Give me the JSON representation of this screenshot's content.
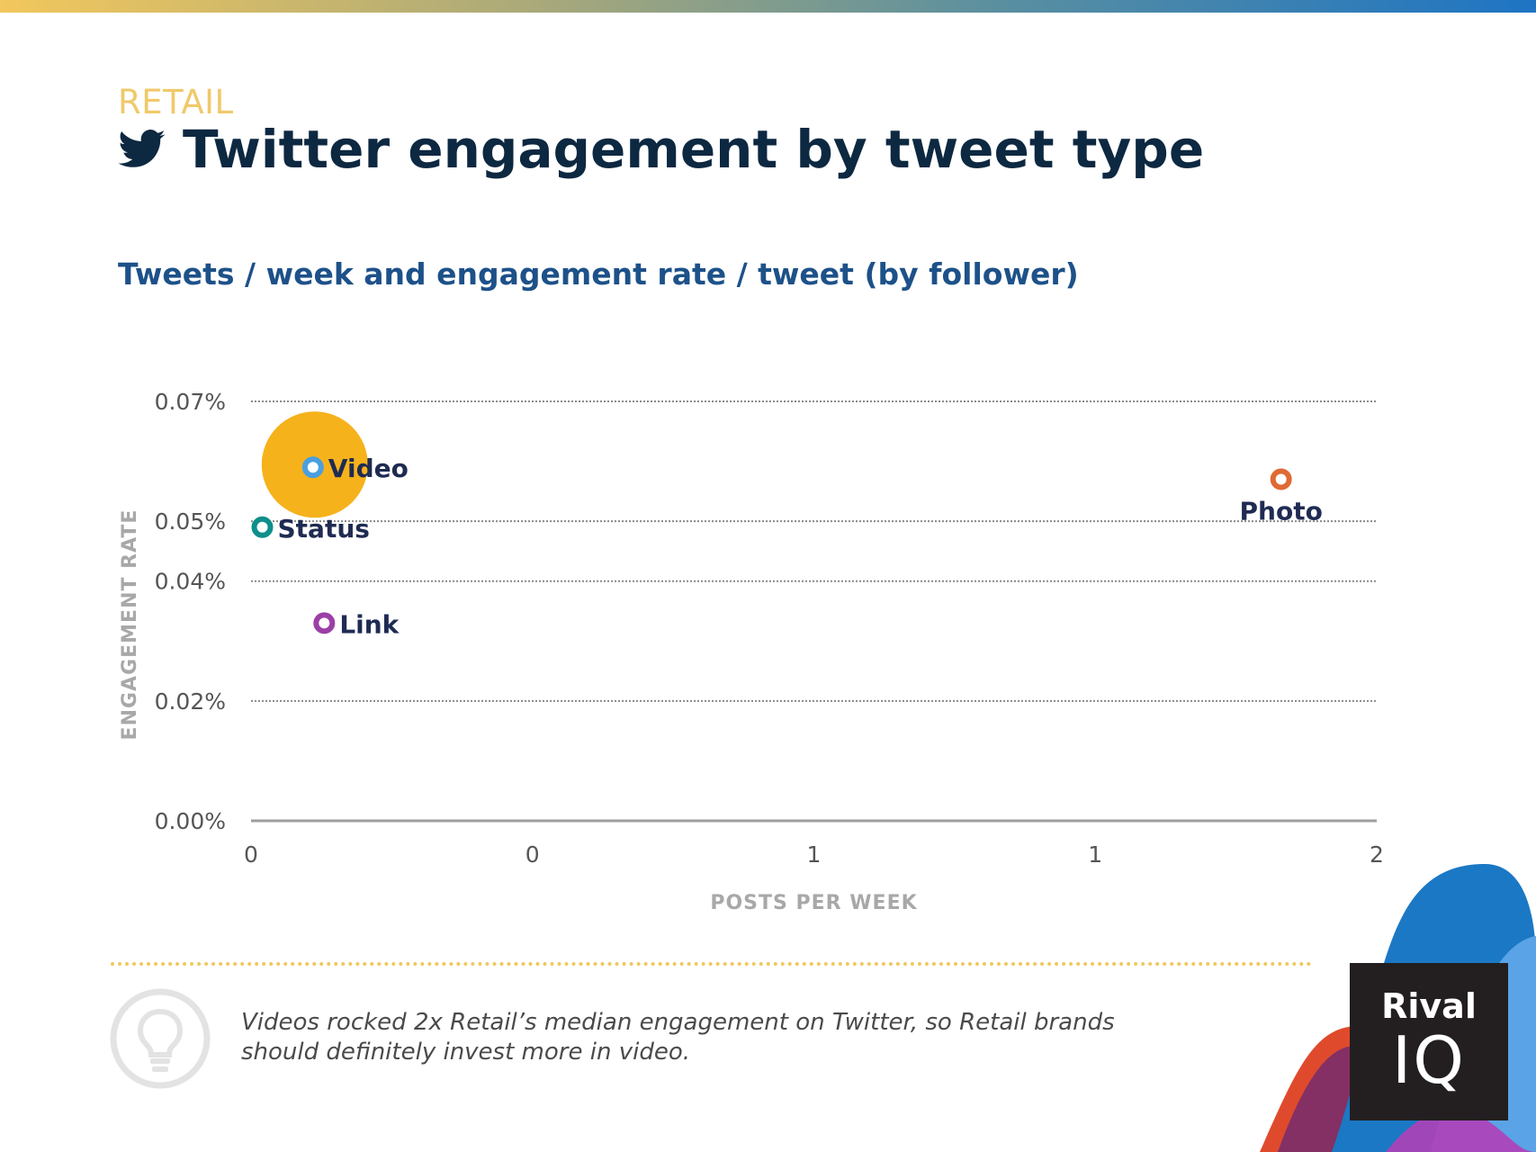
{
  "header": {
    "kicker": "RETAIL",
    "title": "Twitter engagement by tweet type",
    "subtitle": "Tweets / week and engagement rate / tweet (by follower)"
  },
  "chart_data": {
    "type": "scatter",
    "xlabel": "POSTS PER WEEK",
    "ylabel": "ENGAGEMENT RATE",
    "xlim": [
      0,
      2
    ],
    "ylim": [
      0,
      0.0007
    ],
    "y_ticks": [
      {
        "value": 0.0,
        "label": "0.00%"
      },
      {
        "value": 0.0002,
        "label": "0.02%"
      },
      {
        "value": 0.0004,
        "label": "0.04%"
      },
      {
        "value": 0.0005,
        "label": "0.05%"
      },
      {
        "value": 0.0007,
        "label": "0.07%"
      }
    ],
    "x_ticks": [
      {
        "value": 0,
        "label": "0"
      },
      {
        "value": 0.5,
        "label": "0"
      },
      {
        "value": 1.0,
        "label": "1"
      },
      {
        "value": 1.5,
        "label": "1"
      },
      {
        "value": 2.0,
        "label": "2"
      }
    ],
    "grid": true,
    "points": [
      {
        "label": "Video",
        "x": 0.11,
        "y": 0.00059,
        "color": "#4a9fe0",
        "highlight_color": "#f6b21b",
        "label_side": "right"
      },
      {
        "label": "Status",
        "x": 0.02,
        "y": 0.00049,
        "color": "#0e8f8a",
        "label_side": "right"
      },
      {
        "label": "Link",
        "x": 0.13,
        "y": 0.00033,
        "color": "#9b3fa7",
        "label_side": "right"
      },
      {
        "label": "Photo",
        "x": 1.83,
        "y": 0.00057,
        "color": "#e06a35",
        "label_side": "below"
      }
    ]
  },
  "insight": {
    "text": "Videos rocked 2x Retail’s median engagement on Twitter, so Retail brands should definitely invest more in video."
  },
  "brand": {
    "logo_line1": "Rival",
    "logo_line2": "IQ"
  },
  "icons": [
    "twitter-icon",
    "lightbulb-icon"
  ]
}
